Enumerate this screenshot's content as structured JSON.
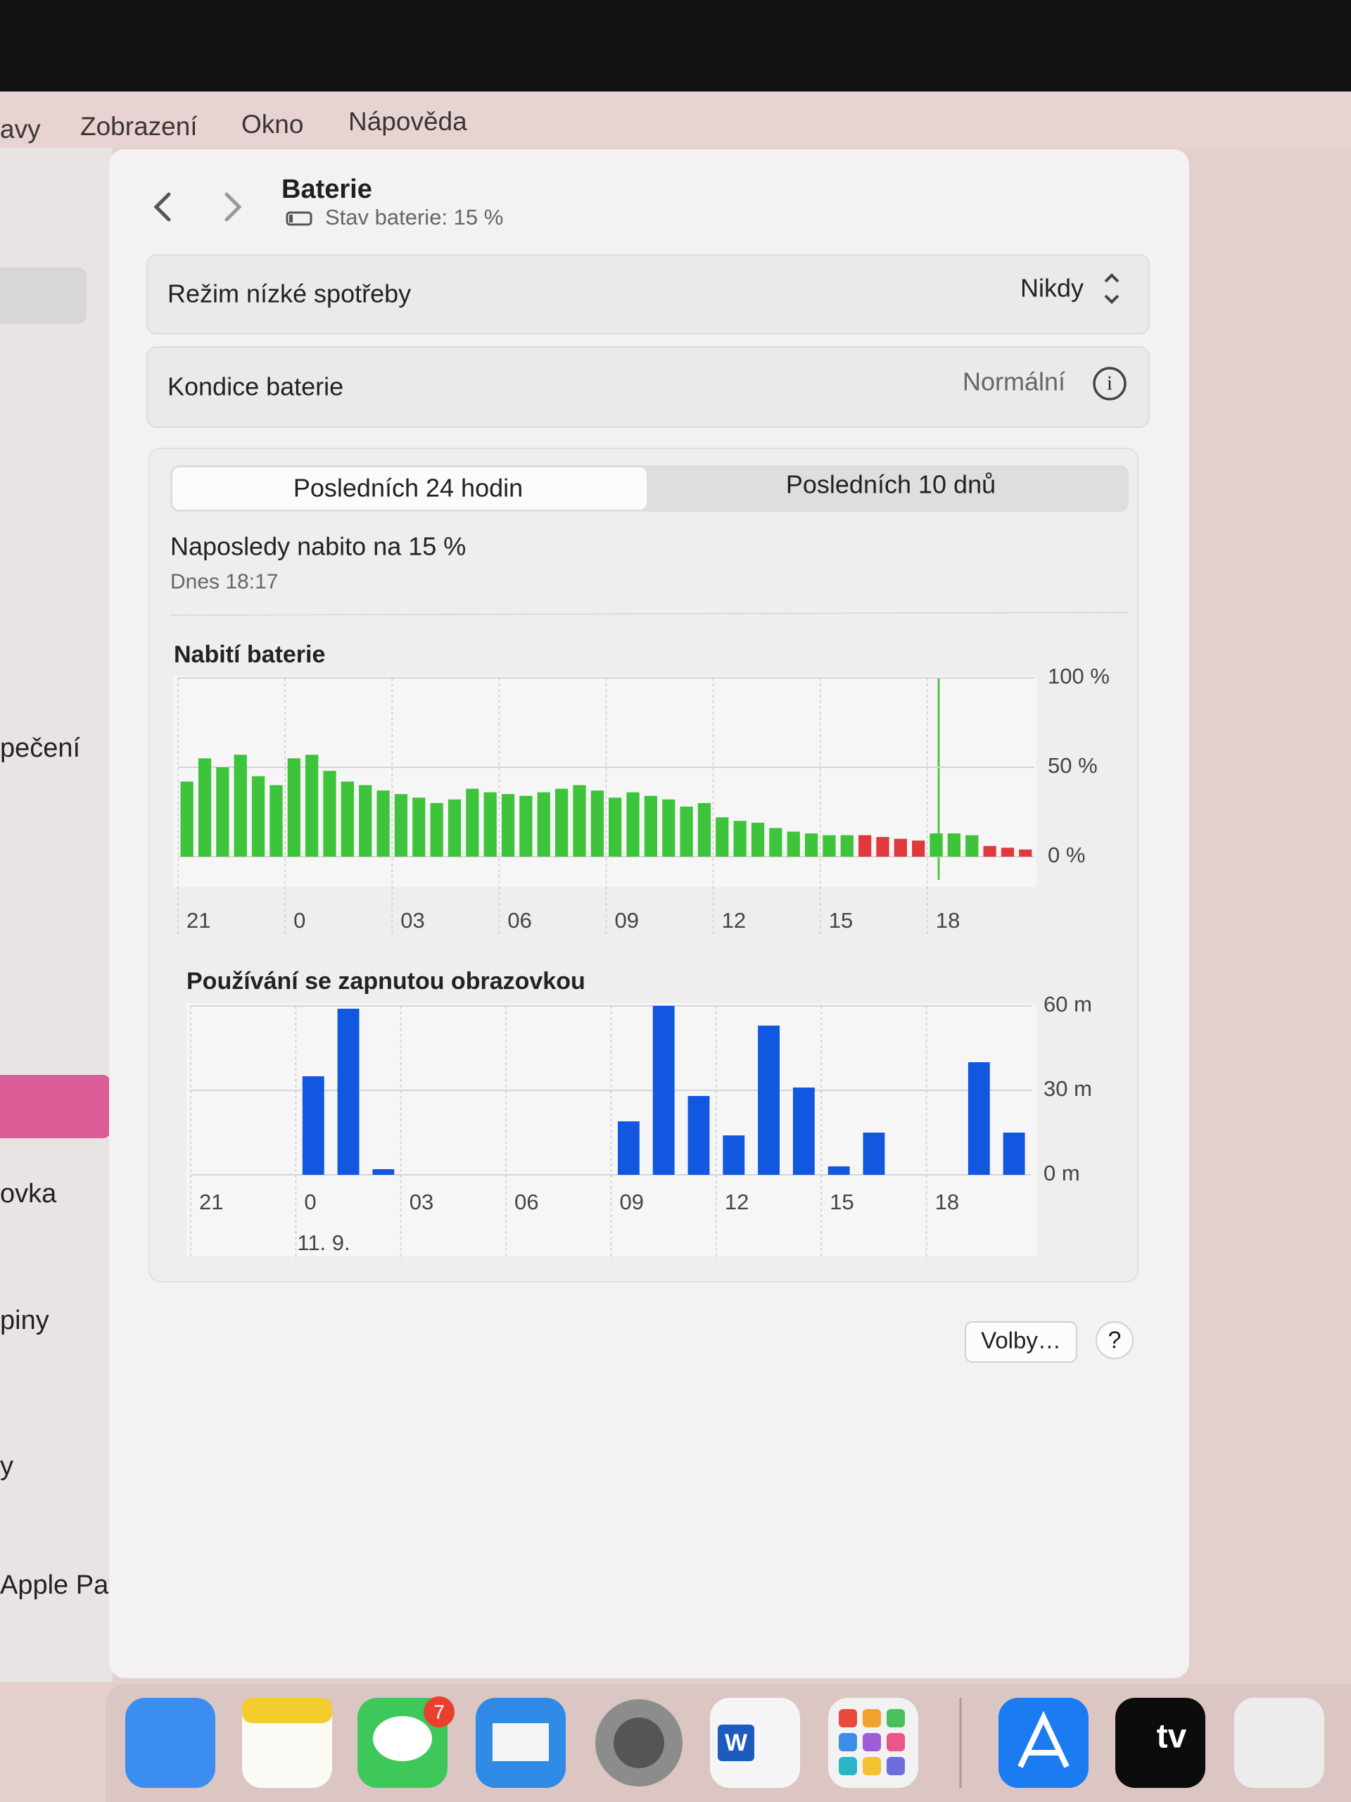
{
  "menu": [
    "avy",
    "Zobrazení",
    "Okno",
    "Nápověda"
  ],
  "sidebar": [
    "pečení",
    "ovka",
    "piny",
    "y",
    "Apple Pay"
  ],
  "header": {
    "title": "Baterie",
    "subtitle": "Stav baterie: 15 %"
  },
  "settings": [
    {
      "label": "Režim nízké spotřeby",
      "value": "Nikdy"
    },
    {
      "label": "Kondice baterie",
      "value": "Normální"
    }
  ],
  "tabs": [
    "Posledních 24 hodin",
    "Posledních 10 dnů"
  ],
  "last_charge": {
    "title": "Naposledy nabito na 15 %",
    "time": "Dnes 18:17"
  },
  "chart_data": [
    {
      "type": "bar",
      "title": "Nabití baterie",
      "values": [
        42,
        55,
        50,
        57,
        45,
        40,
        55,
        57,
        48,
        42,
        40,
        37,
        35,
        33,
        30,
        32,
        38,
        36,
        35,
        34,
        36,
        38,
        40,
        37,
        33,
        36,
        34,
        32,
        28,
        30,
        22,
        20,
        19,
        16,
        14,
        13,
        12,
        12,
        12,
        11,
        10,
        9,
        13,
        13,
        12,
        6,
        5,
        4
      ],
      "colors": [
        "#3ec43a",
        "#3ec43a",
        "#3ec43a",
        "#3ec43a",
        "#3ec43a",
        "#3ec43a",
        "#3ec43a",
        "#3ec43a",
        "#3ec43a",
        "#3ec43a",
        "#3ec43a",
        "#3ec43a",
        "#3ec43a",
        "#3ec43a",
        "#3ec43a",
        "#3ec43a",
        "#3ec43a",
        "#3ec43a",
        "#3ec43a",
        "#3ec43a",
        "#3ec43a",
        "#3ec43a",
        "#3ec43a",
        "#3ec43a",
        "#3ec43a",
        "#3ec43a",
        "#3ec43a",
        "#3ec43a",
        "#3ec43a",
        "#3ec43a",
        "#3ec43a",
        "#3ec43a",
        "#3ec43a",
        "#3ec43a",
        "#3ec43a",
        "#3ec43a",
        "#3ec43a",
        "#3ec43a",
        "#e0393b",
        "#e0393b",
        "#e0393b",
        "#e0393b",
        "#3ec43a",
        "#3ec43a",
        "#3ec43a",
        "#e0393b",
        "#e0393b",
        "#e0393b"
      ],
      "xlim": [
        0,
        24
      ],
      "xticks": [
        {
          "value": 0,
          "label": "21"
        },
        {
          "value": 3,
          "label": "0"
        },
        {
          "value": 6,
          "label": "03"
        },
        {
          "value": 9,
          "label": "06"
        },
        {
          "value": 12,
          "label": "09"
        },
        {
          "value": 15,
          "label": "12"
        },
        {
          "value": 18,
          "label": "15"
        },
        {
          "value": 21,
          "label": "18"
        }
      ],
      "ylim": [
        0,
        100
      ],
      "yticks": [
        {
          "value": 0,
          "label": "0 %"
        },
        {
          "value": 50,
          "label": "50 %"
        },
        {
          "value": 100,
          "label": "100 %"
        }
      ],
      "grid": true
    },
    {
      "type": "bar",
      "title": "Používání se zapnutou obrazovkou",
      "values": [
        0,
        0,
        0,
        35,
        59,
        2,
        0,
        0,
        0,
        0,
        0,
        0,
        19,
        60,
        28,
        14,
        53,
        31,
        3,
        15,
        0,
        0,
        40,
        15
      ],
      "color": "#1257e0",
      "xlim": [
        0,
        24
      ],
      "xticks": [
        {
          "value": 0,
          "label": "21"
        },
        {
          "value": 3,
          "label": "0"
        },
        {
          "value": 6,
          "label": "03"
        },
        {
          "value": 9,
          "label": "06"
        },
        {
          "value": 12,
          "label": "09"
        },
        {
          "value": 15,
          "label": "12"
        },
        {
          "value": 18,
          "label": "15"
        },
        {
          "value": 21,
          "label": "18"
        }
      ],
      "ylim": [
        0,
        60
      ],
      "yticks": [
        {
          "value": 0,
          "label": "0 m"
        },
        {
          "value": 30,
          "label": "30 m"
        },
        {
          "value": 60,
          "label": "60 m"
        }
      ],
      "grid": true,
      "date_label": "11. 9."
    }
  ],
  "buttons": [
    "Volby…",
    "?"
  ],
  "dock": {
    "badge": "7",
    "word": "W",
    "tv": "tv"
  }
}
